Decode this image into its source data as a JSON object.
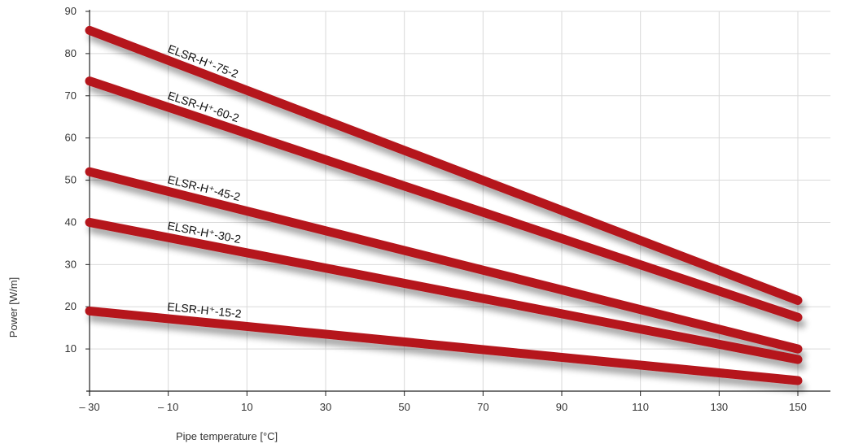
{
  "chart_data": {
    "type": "line",
    "title": "",
    "xlabel": "Pipe temperature [°C]",
    "ylabel": "Power [W/m]",
    "xlim": [
      -30,
      150
    ],
    "ylim": [
      0,
      90
    ],
    "x_ticks": [
      -30,
      -10,
      10,
      30,
      50,
      70,
      90,
      110,
      130,
      150
    ],
    "x_tick_labels": [
      "– 30",
      "– 10",
      "10",
      "30",
      "50",
      "70",
      "90",
      "110",
      "130",
      "150"
    ],
    "y_ticks": [
      10,
      20,
      30,
      40,
      50,
      60,
      70,
      80,
      90
    ],
    "y_tick_labels": [
      "10",
      "20",
      "30",
      "40",
      "50",
      "60",
      "70",
      "80",
      "90"
    ],
    "grid": true,
    "line_color": "#b5121b",
    "series": [
      {
        "name": "ELSR-H⁺-75-2",
        "x": [
          -30,
          150
        ],
        "y": [
          85.5,
          21.5
        ]
      },
      {
        "name": "ELSR-H⁺-60-2",
        "x": [
          -30,
          150
        ],
        "y": [
          73.5,
          17.5
        ]
      },
      {
        "name": "ELSR-H⁺-45-2",
        "x": [
          -30,
          150
        ],
        "y": [
          52,
          10
        ]
      },
      {
        "name": "ELSR-H⁺-30-2",
        "x": [
          -30,
          150
        ],
        "y": [
          40,
          7.5
        ]
      },
      {
        "name": "ELSR-H⁺-15-2",
        "x": [
          -30,
          150
        ],
        "y": [
          19,
          2.5
        ]
      }
    ]
  }
}
